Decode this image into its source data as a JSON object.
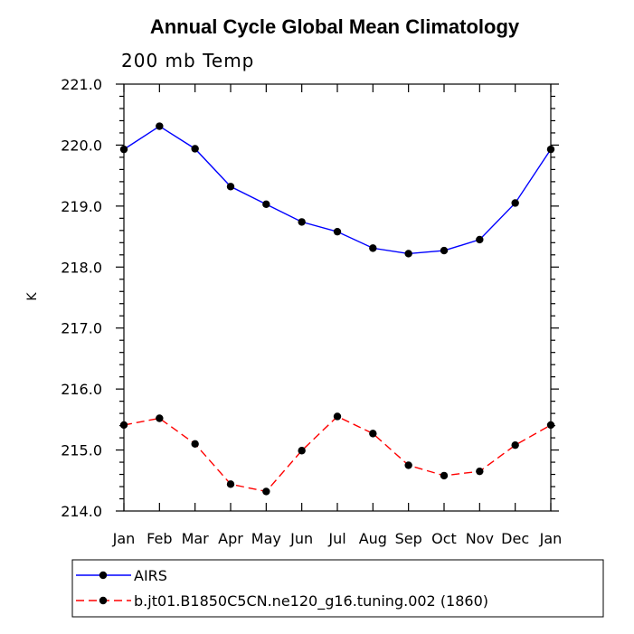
{
  "chart_data": {
    "type": "line",
    "title": "Annual Cycle Global Mean Climatology",
    "subtitle": "200 mb Temp",
    "xlabel": "",
    "ylabel": "K",
    "categories": [
      "Jan",
      "Feb",
      "Mar",
      "Apr",
      "May",
      "Jun",
      "Jul",
      "Aug",
      "Sep",
      "Oct",
      "Nov",
      "Dec",
      "Jan"
    ],
    "ylim": [
      214.0,
      221.0
    ],
    "yticks": [
      "214.0",
      "215.0",
      "216.0",
      "217.0",
      "218.0",
      "219.0",
      "220.0",
      "221.0"
    ],
    "grid": false,
    "legend_placement": "bottom",
    "series": [
      {
        "name": "AIRS",
        "color": "#0000ff",
        "line_style": "solid",
        "marker": "filled-circle",
        "values": [
          219.93,
          220.31,
          219.94,
          219.32,
          219.03,
          218.74,
          218.58,
          218.31,
          218.22,
          218.27,
          218.45,
          219.05,
          219.93
        ]
      },
      {
        "name": "b.jt01.B1850C5CN.ne120_g16.tuning.002 (1860)",
        "color": "#ff0000",
        "line_style": "dashed",
        "marker": "filled-circle",
        "values": [
          215.41,
          215.52,
          215.1,
          214.44,
          214.32,
          214.99,
          215.55,
          215.27,
          214.75,
          214.58,
          214.65,
          215.08,
          215.41
        ]
      }
    ]
  }
}
